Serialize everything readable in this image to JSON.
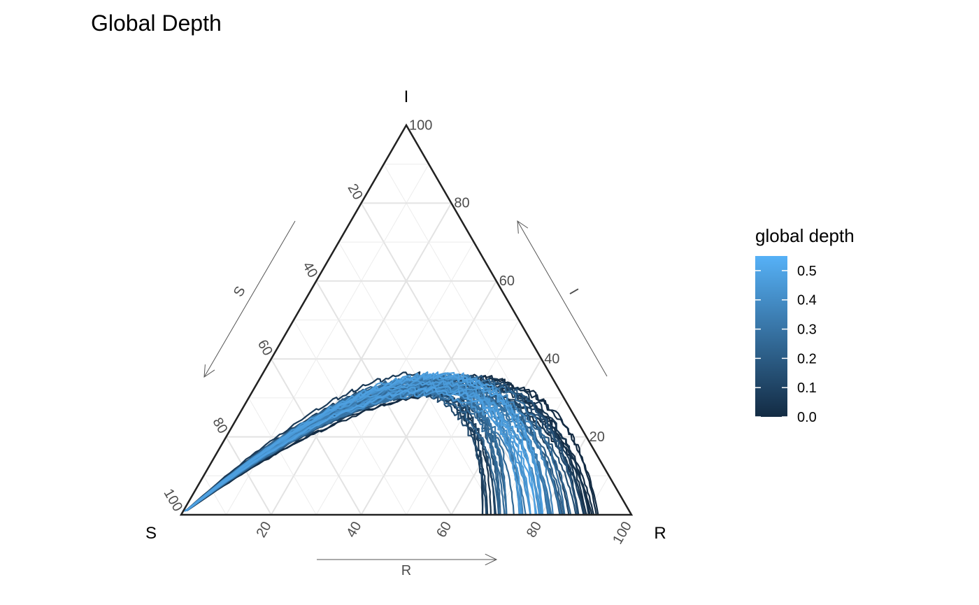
{
  "chart_data": {
    "type": "ternary-line",
    "title": "Global Depth",
    "axes": {
      "S": {
        "label": "S",
        "arrow_label": "S"
      },
      "I": {
        "label": "I",
        "arrow_label": "I"
      },
      "R": {
        "label": "R",
        "arrow_label": "R"
      }
    },
    "range": [
      0,
      100
    ],
    "ticks": [
      20,
      40,
      60,
      80,
      100
    ],
    "tick_labels": [
      "20",
      "40",
      "60",
      "80",
      "100"
    ],
    "grid": true,
    "color_scale": {
      "title": "global depth",
      "low_color": "#132B43",
      "high_color": "#56B1F7",
      "min": 0.0,
      "max": 0.55,
      "ticks": [
        0.0,
        0.1,
        0.2,
        0.3,
        0.4,
        0.5
      ],
      "tick_labels": [
        "0.0",
        "0.1",
        "0.2",
        "0.3",
        "0.4",
        "0.5"
      ]
    },
    "series_summary": {
      "count": 60,
      "shape": "SIR trajectories starting near S=100, peaking at about I=36, ending at R between 67 and 92",
      "r_final_range": [
        67,
        92
      ],
      "i_peak_range": [
        28,
        36
      ]
    },
    "legend_position": "right"
  }
}
